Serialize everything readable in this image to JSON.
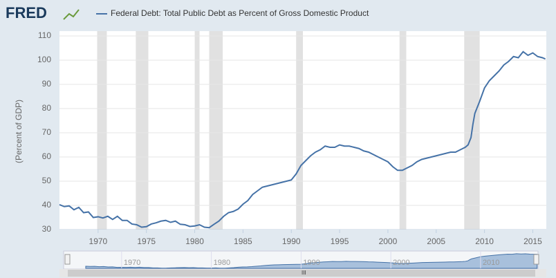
{
  "chart_data": {
    "type": "line",
    "logo": "FRED",
    "ylabel": "(Percent of GDP)",
    "xlim": [
      1966,
      2016.4
    ],
    "ylim": [
      30,
      110
    ],
    "xticks": [
      1970,
      1975,
      1980,
      1985,
      1990,
      1995,
      2000,
      2005,
      2010,
      2015
    ],
    "yticks": [
      30,
      40,
      50,
      60,
      70,
      80,
      90,
      100,
      110
    ],
    "grid": true,
    "recessions": [
      [
        1969.9,
        1970.9
      ],
      [
        1973.9,
        1975.2
      ],
      [
        1980.0,
        1980.5
      ],
      [
        1981.5,
        1982.9
      ],
      [
        1990.5,
        1991.2
      ],
      [
        2001.2,
        2001.9
      ],
      [
        2007.9,
        2009.5
      ]
    ],
    "navigator": {
      "xlim": [
        1964,
        2016.4
      ],
      "xticks": [
        1970,
        1980,
        1990,
        2000,
        2010
      ]
    },
    "series": [
      {
        "name": "Federal Debt: Total Public Debt as Percent of Gross Domestic Product",
        "color": "#4572a7",
        "x": [
          1966.0,
          1966.5,
          1967.0,
          1967.5,
          1968.0,
          1968.5,
          1969.0,
          1969.5,
          1970.0,
          1970.5,
          1971.0,
          1971.5,
          1972.0,
          1972.5,
          1973.0,
          1973.5,
          1974.0,
          1974.5,
          1975.0,
          1975.5,
          1976.0,
          1976.5,
          1977.0,
          1977.5,
          1978.0,
          1978.5,
          1979.0,
          1979.5,
          1980.0,
          1980.5,
          1981.0,
          1981.5,
          1982.0,
          1982.5,
          1983.0,
          1983.5,
          1984.0,
          1984.5,
          1985.0,
          1985.5,
          1986.0,
          1986.5,
          1987.0,
          1987.5,
          1988.0,
          1988.5,
          1989.0,
          1989.5,
          1990.0,
          1990.5,
          1991.0,
          1991.5,
          1992.0,
          1992.5,
          1993.0,
          1993.5,
          1994.0,
          1994.5,
          1995.0,
          1995.5,
          1996.0,
          1996.5,
          1997.0,
          1997.5,
          1998.0,
          1998.5,
          1999.0,
          1999.5,
          2000.0,
          2000.5,
          2001.0,
          2001.5,
          2002.0,
          2002.5,
          2003.0,
          2003.5,
          2004.0,
          2004.5,
          2005.0,
          2005.5,
          2006.0,
          2006.5,
          2007.0,
          2007.5,
          2008.0,
          2008.3,
          2008.6,
          2008.8,
          2009.0,
          2009.5,
          2010.0,
          2010.5,
          2011.0,
          2011.5,
          2012.0,
          2012.5,
          2013.0,
          2013.5,
          2014.0,
          2014.5,
          2015.0,
          2015.5,
          2016.0,
          2016.3
        ],
        "values": [
          40.3,
          39.5,
          39.8,
          38.2,
          39.2,
          37.0,
          37.3,
          35.0,
          35.3,
          34.8,
          35.5,
          34.2,
          35.5,
          33.8,
          33.8,
          32.3,
          32.0,
          31.0,
          31.2,
          32.3,
          32.8,
          33.5,
          33.8,
          33.0,
          33.5,
          32.2,
          32.0,
          31.3,
          31.5,
          32.0,
          31.0,
          30.8,
          32.2,
          33.5,
          35.5,
          37.0,
          37.5,
          38.5,
          40.5,
          42.0,
          44.5,
          46.0,
          47.5,
          48.0,
          48.5,
          49.0,
          49.5,
          50.0,
          50.5,
          53.0,
          56.5,
          58.5,
          60.5,
          62.0,
          63.0,
          64.5,
          64.0,
          64.0,
          65.0,
          64.5,
          64.5,
          64.0,
          63.5,
          62.5,
          62.0,
          61.0,
          60.0,
          59.0,
          58.0,
          56.0,
          54.5,
          54.5,
          55.5,
          56.5,
          58.0,
          59.0,
          59.5,
          60.0,
          60.5,
          61.0,
          61.5,
          62.0,
          62.0,
          63.0,
          64.0,
          65.0,
          68.0,
          73.5,
          78.0,
          83.0,
          88.5,
          91.5,
          93.5,
          95.5,
          98.0,
          99.5,
          101.5,
          101.0,
          103.5,
          102.0,
          103.0,
          101.5,
          101.0,
          100.5
        ]
      }
    ]
  }
}
